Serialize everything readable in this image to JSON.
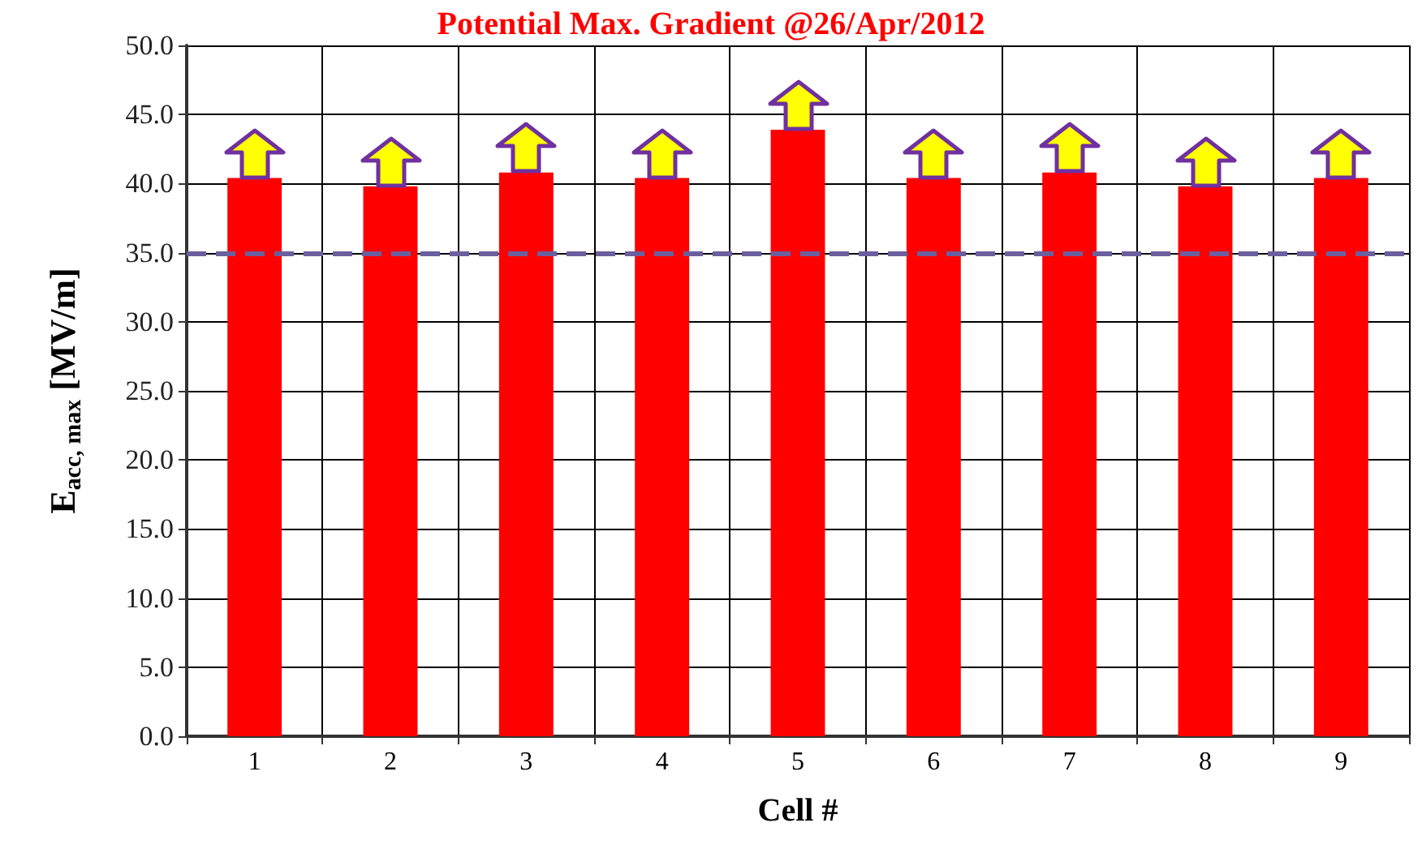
{
  "chart_data": {
    "type": "bar",
    "title": "Potential Max. Gradient @26/Apr/2012",
    "xlabel": "Cell #",
    "ylabel": "E$_{acc, max}$ [MV/m]",
    "categories": [
      "1",
      "2",
      "3",
      "4",
      "5",
      "6",
      "7",
      "8",
      "9"
    ],
    "values": [
      40.4,
      39.8,
      40.8,
      40.4,
      43.9,
      40.4,
      40.8,
      39.8,
      40.4
    ],
    "color": "#ff0000",
    "ylim": [
      0,
      50
    ],
    "yticks": [
      {
        "value": 0,
        "label": "0.0"
      },
      {
        "value": 5,
        "label": "5.0"
      },
      {
        "value": 10,
        "label": "10.0"
      },
      {
        "value": 15,
        "label": "15.0"
      },
      {
        "value": 20,
        "label": "20.0"
      },
      {
        "value": 25,
        "label": "25.0"
      },
      {
        "value": 30,
        "label": "30.0"
      },
      {
        "value": 35,
        "label": "35.0"
      },
      {
        "value": 40,
        "label": "40.0"
      },
      {
        "value": 45,
        "label": "45.0"
      },
      {
        "value": 50,
        "label": "50.0"
      }
    ],
    "ref_lines": [
      {
        "axis": "y",
        "value": 35,
        "color": "#6b5f9e",
        "line_style": "dashed"
      }
    ],
    "grid": true
  }
}
